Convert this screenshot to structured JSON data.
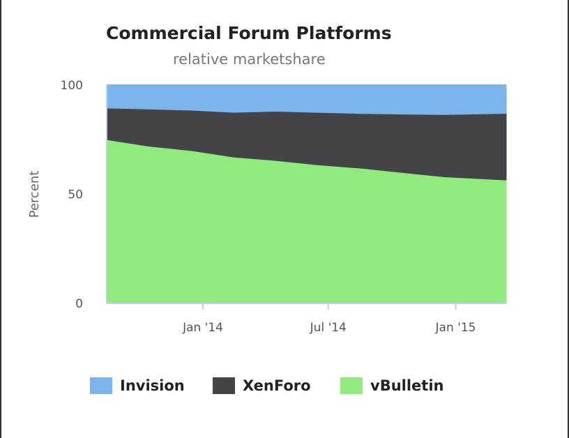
{
  "chart_data": {
    "type": "area",
    "stacking": "percent",
    "title": "Commercial Forum Platforms",
    "subtitle": "relative marketshare",
    "xlabel": "",
    "ylabel": "Percent",
    "ylim": [
      0,
      100
    ],
    "yticks": [
      0,
      50,
      100
    ],
    "xlim": [
      "2013-08-15",
      "2015-03-15"
    ],
    "xticks": [
      {
        "date": "2014-01-01",
        "label": "Jan '14"
      },
      {
        "date": "2014-07-01",
        "label": "Jul '14"
      },
      {
        "date": "2015-01-01",
        "label": "Jan '15"
      }
    ],
    "x": [
      "2013-08-15",
      "2013-10-15",
      "2013-12-15",
      "2014-02-15",
      "2014-04-15",
      "2014-06-15",
      "2014-08-15",
      "2014-10-15",
      "2014-12-15",
      "2015-03-15"
    ],
    "series": [
      {
        "name": "vBulletin",
        "color": "#90ea7d",
        "values": [
          75,
          72,
          70,
          67,
          65.5,
          63.5,
          62,
          60,
          58,
          56.5
        ]
      },
      {
        "name": "XenForo",
        "color": "#434348",
        "values": [
          14.5,
          17,
          18.5,
          20.5,
          22.5,
          24,
          25,
          26.7,
          28.5,
          30.5
        ]
      },
      {
        "name": "Invision",
        "color": "#7cb5ec",
        "values": [
          10.5,
          11,
          11.5,
          12.5,
          12,
          12.5,
          13,
          13.3,
          13.5,
          13
        ]
      }
    ],
    "legend_position": "bottom",
    "legend": [
      "Invision",
      "XenForo",
      "vBulletin"
    ],
    "grid": false
  }
}
